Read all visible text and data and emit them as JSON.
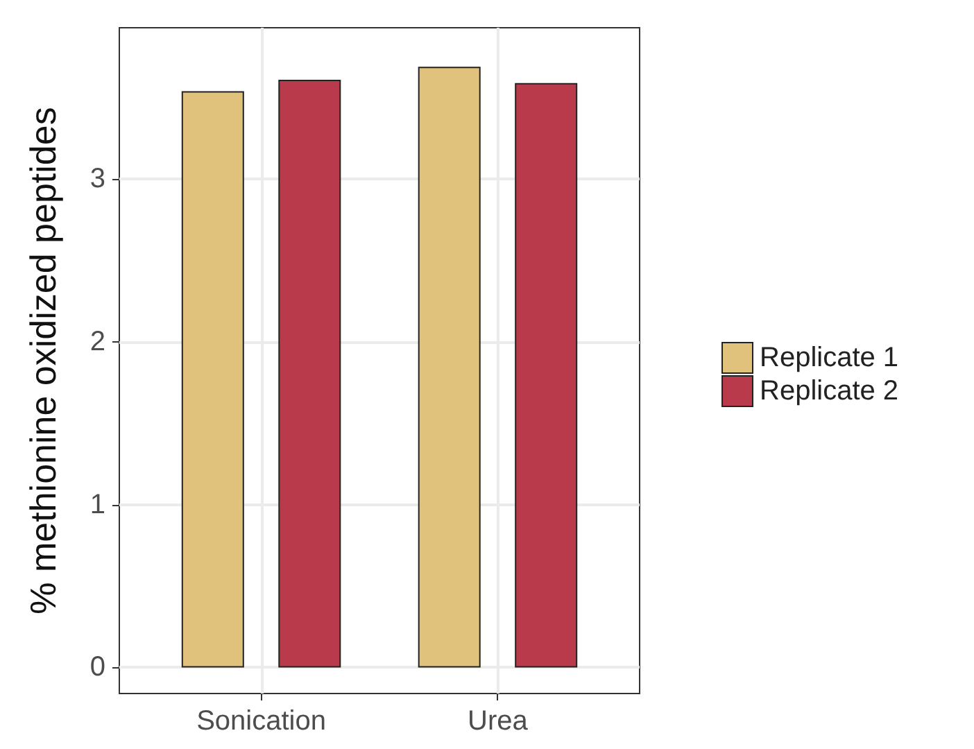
{
  "chart_data": {
    "type": "bar",
    "ylabel": "% methionine oxidized peptides",
    "categories": [
      "Sonication",
      "Urea"
    ],
    "series": [
      {
        "name": "Replicate 1",
        "color": "#e0c27c",
        "values": [
          3.54,
          3.69
        ]
      },
      {
        "name": "Replicate 2",
        "color": "#b83a4b",
        "values": [
          3.61,
          3.59
        ]
      }
    ],
    "ylim": [
      -0.16,
      3.93
    ],
    "yticks": [
      0,
      1,
      2,
      3
    ],
    "grid": true,
    "legend": "right"
  }
}
